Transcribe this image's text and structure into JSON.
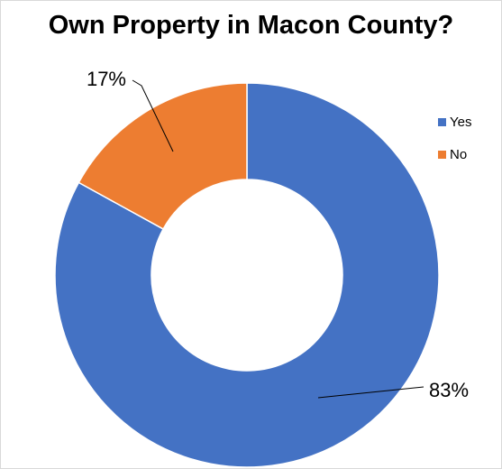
{
  "chart_data": {
    "type": "pie",
    "variant": "donut",
    "title": "Own Property in Macon County?",
    "categories": [
      "Yes",
      "No"
    ],
    "values": [
      83,
      17
    ],
    "labels": [
      "83%",
      "17%"
    ],
    "colors": [
      "#4472C4",
      "#ED7D31"
    ],
    "legend_position": "right"
  }
}
